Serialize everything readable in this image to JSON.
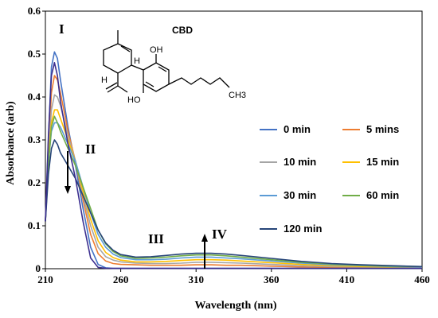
{
  "chart_data": {
    "type": "line",
    "xlabel": "Wavelength (nm)",
    "ylabel": "Absorbance (arb)",
    "xlim": [
      210,
      460
    ],
    "ylim": [
      0,
      0.6
    ],
    "x_ticks": [
      "210",
      "260",
      "310",
      "360",
      "410",
      "460"
    ],
    "y_ticks": [
      "0",
      "0.1",
      "0.2",
      "0.3",
      "0.4",
      "0.5",
      "0.6"
    ],
    "legend_placement": "right",
    "grid": false,
    "annotations": [
      "I",
      "II",
      "III",
      "IV"
    ],
    "molecule": {
      "label": "CBD",
      "atoms": [
        "H",
        "H",
        "OH",
        "HO",
        "CH3"
      ]
    },
    "x": [
      210,
      212,
      214,
      216,
      218,
      220,
      225,
      230,
      235,
      240,
      245,
      250,
      255,
      260,
      270,
      280,
      290,
      300,
      310,
      320,
      330,
      340,
      360,
      380,
      400,
      420,
      440,
      460
    ],
    "series": [
      {
        "name": "0 min",
        "color": "#4472C4",
        "values": [
          0.11,
          0.3,
          0.47,
          0.505,
          0.49,
          0.44,
          0.33,
          0.24,
          0.14,
          0.05,
          0.01,
          0.002,
          0.001,
          0.001,
          0.001,
          0.001,
          0.001,
          0.001,
          0.001,
          0.001,
          0.001,
          0.001,
          0.001,
          0.001,
          0.001,
          0.001,
          0.001,
          0.001
        ]
      },
      {
        "name": "5 mins",
        "color": "#ED7D31",
        "values": [
          0.11,
          0.28,
          0.41,
          0.45,
          0.44,
          0.41,
          0.32,
          0.25,
          0.16,
          0.08,
          0.035,
          0.018,
          0.012,
          0.01,
          0.009,
          0.008,
          0.008,
          0.008,
          0.009,
          0.009,
          0.008,
          0.008,
          0.006,
          0.004,
          0.003,
          0.002,
          0.002,
          0.002
        ]
      },
      {
        "name": "10 min",
        "color": "#A5A5A5",
        "values": [
          0.11,
          0.27,
          0.37,
          0.405,
          0.4,
          0.38,
          0.31,
          0.25,
          0.17,
          0.1,
          0.05,
          0.028,
          0.02,
          0.016,
          0.013,
          0.012,
          0.012,
          0.013,
          0.015,
          0.015,
          0.014,
          0.013,
          0.01,
          0.007,
          0.005,
          0.004,
          0.003,
          0.003
        ]
      },
      {
        "name": "15 min",
        "color": "#FFC000",
        "values": [
          0.11,
          0.26,
          0.34,
          0.37,
          0.37,
          0.35,
          0.3,
          0.25,
          0.18,
          0.115,
          0.065,
          0.038,
          0.026,
          0.02,
          0.016,
          0.016,
          0.017,
          0.019,
          0.021,
          0.021,
          0.02,
          0.018,
          0.014,
          0.01,
          0.007,
          0.005,
          0.004,
          0.004
        ]
      },
      {
        "name": "30 min",
        "color": "#5B9BD5",
        "values": [
          0.11,
          0.25,
          0.32,
          0.34,
          0.34,
          0.33,
          0.29,
          0.25,
          0.19,
          0.13,
          0.08,
          0.05,
          0.034,
          0.026,
          0.021,
          0.021,
          0.022,
          0.025,
          0.027,
          0.027,
          0.025,
          0.023,
          0.018,
          0.013,
          0.009,
          0.007,
          0.005,
          0.004
        ]
      },
      {
        "name": "60 min",
        "color": "#70AD47",
        "values": [
          0.11,
          0.24,
          0.33,
          0.355,
          0.34,
          0.32,
          0.28,
          0.24,
          0.19,
          0.14,
          0.09,
          0.058,
          0.04,
          0.03,
          0.024,
          0.025,
          0.027,
          0.03,
          0.032,
          0.032,
          0.03,
          0.027,
          0.021,
          0.015,
          0.011,
          0.008,
          0.006,
          0.005
        ]
      },
      {
        "name": "120 min",
        "color": "#264478",
        "values": [
          0.11,
          0.22,
          0.28,
          0.3,
          0.29,
          0.27,
          0.24,
          0.21,
          0.17,
          0.13,
          0.09,
          0.06,
          0.043,
          0.033,
          0.027,
          0.028,
          0.031,
          0.034,
          0.036,
          0.036,
          0.034,
          0.031,
          0.024,
          0.017,
          0.012,
          0.009,
          0.007,
          0.005
        ]
      },
      {
        "name": "",
        "color": "#3B2E8F",
        "values": [
          0.11,
          0.31,
          0.45,
          0.48,
          0.45,
          0.39,
          0.29,
          0.21,
          0.11,
          0.025,
          0.003,
          0.001,
          0.001,
          0.001,
          0.001,
          0.001,
          0.001,
          0.001,
          0.001,
          0.001,
          0.001,
          0.001,
          0.001,
          0.001,
          0.001,
          0.001,
          0.001,
          0.001
        ]
      }
    ]
  }
}
